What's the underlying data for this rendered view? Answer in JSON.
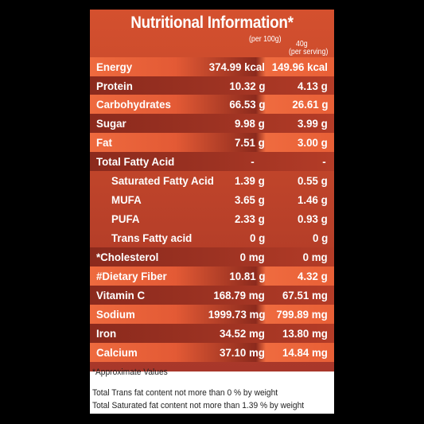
{
  "title": "Nutritional Information*",
  "col_header_100g": "(per 100g)",
  "col_header_serving_1": "40g",
  "col_header_serving_2": "(per serving)",
  "rows": [
    {
      "name": "Energy",
      "per100g": "374.99 kcal",
      "serving": "149.96 kcal"
    },
    {
      "name": "Protein",
      "per100g": "10.32 g",
      "serving": "4.13 g"
    },
    {
      "name": "Carbohydrates",
      "per100g": "66.53 g",
      "serving": "26.61 g"
    },
    {
      "name": "Sugar",
      "per100g": "9.98 g",
      "serving": "3.99 g"
    },
    {
      "name": "Fat",
      "per100g": "7.51 g",
      "serving": "3.00 g"
    },
    {
      "name": "Total Fatty Acid",
      "per100g": "-",
      "serving": "-"
    },
    {
      "name": "Saturated Fatty Acid",
      "per100g": "1.39 g",
      "serving": "0.55 g"
    },
    {
      "name": "MUFA",
      "per100g": "3.65 g",
      "serving": "1.46 g"
    },
    {
      "name": "PUFA",
      "per100g": "2.33 g",
      "serving": "0.93 g"
    },
    {
      "name": "Trans Fatty acid",
      "per100g": "0 g",
      "serving": "0 g"
    },
    {
      "name": "*Cholesterol",
      "per100g": "0 mg",
      "serving": "0 mg"
    },
    {
      "name": "#Dietary Fiber",
      "per100g": "10.81 g",
      "serving": "4.32 g"
    },
    {
      "name": "Vitamin C",
      "per100g": "168.79 mg",
      "serving": "67.51 mg"
    },
    {
      "name": "Sodium",
      "per100g": "1999.73 mg",
      "serving": "799.89 mg"
    },
    {
      "name": "Iron",
      "per100g": "34.52 mg",
      "serving": "13.80 mg"
    },
    {
      "name": "Calcium",
      "per100g": "37.10 mg",
      "serving": "14.84 mg"
    }
  ],
  "footnote_approx": "*Approximate Values",
  "footnote_trans": "Total Trans fat content not more than 0 % by weight",
  "footnote_sat": "Total Saturated fat content not more than 1.39 % by weight"
}
